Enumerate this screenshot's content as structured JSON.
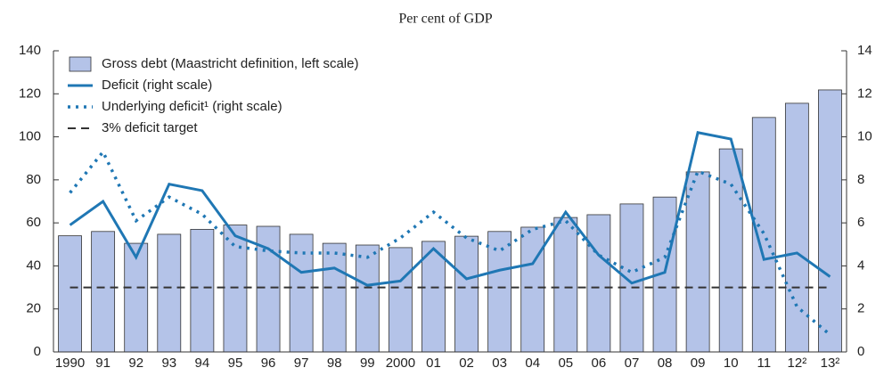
{
  "chart_data": {
    "type": "bar-line",
    "subtitle": "Per cent of GDP",
    "categories": [
      "1990",
      "91",
      "92",
      "93",
      "94",
      "95",
      "96",
      "97",
      "98",
      "99",
      "2000",
      "01",
      "02",
      "03",
      "04",
      "05",
      "06",
      "07",
      "08",
      "09",
      "10",
      "11",
      "12²",
      "13²"
    ],
    "series": [
      {
        "name": "Gross debt (Maastricht definition, left scale)",
        "type": "bar",
        "color": "#b4c3e8",
        "values": [
          54,
          56,
          50.5,
          54.7,
          57,
          59,
          58.4,
          54.7,
          50.5,
          49.7,
          48.5,
          51.4,
          53.8,
          56,
          58,
          62.5,
          63.8,
          68.8,
          72,
          83.7,
          94.4,
          109,
          115.6,
          121.8
        ]
      },
      {
        "name": "Deficit (right scale)",
        "type": "line",
        "style": "solid",
        "axis": "y2",
        "color": "#1f77b4",
        "values": [
          5.9,
          7.0,
          4.4,
          7.8,
          7.5,
          5.4,
          4.8,
          3.7,
          3.9,
          3.1,
          3.3,
          4.8,
          3.4,
          3.8,
          4.1,
          6.5,
          4.5,
          3.2,
          3.7,
          10.2,
          9.9,
          4.3,
          4.6,
          3.5
        ]
      },
      {
        "name": "Underlying deficit¹ (right scale)",
        "type": "line",
        "style": "dotted",
        "axis": "y2",
        "color": "#1f77b4",
        "values": [
          7.4,
          9.3,
          6.1,
          7.2,
          6.4,
          4.9,
          4.7,
          4.6,
          4.6,
          4.4,
          5.3,
          6.5,
          5.3,
          4.7,
          5.7,
          6.1,
          4.5,
          3.7,
          4.4,
          8.4,
          7.8,
          5.5,
          2.1,
          0.8
        ]
      },
      {
        "name": "3% deficit target",
        "type": "hline",
        "style": "dashed",
        "axis": "y2",
        "color": "#333333",
        "value": 3
      }
    ],
    "ylim": [
      0,
      140
    ],
    "yticks": [
      0,
      20,
      40,
      60,
      80,
      100,
      120,
      140
    ],
    "y2lim": [
      0,
      14
    ],
    "y2ticks": [
      0,
      2,
      4,
      6,
      8,
      10,
      12,
      14
    ],
    "grid": false,
    "legend": "upper left"
  }
}
